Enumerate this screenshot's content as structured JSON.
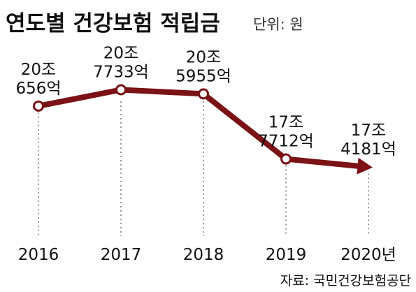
{
  "title": "연도별 건강보험 적립금",
  "unit_note": "단위: 원",
  "source": "자료: 국민건강보험공단",
  "colors": {
    "line": "#7a1216",
    "background": "#ffffff",
    "text": "#111111",
    "gridline": "#555555",
    "unit_text": "#333333"
  },
  "chart_data": {
    "type": "line",
    "categories": [
      "2016",
      "2017",
      "2018",
      "2019",
      "2020년"
    ],
    "series": [
      {
        "values": [
          200656,
          207733,
          205955,
          177712,
          174181
        ],
        "value_unit": "억 원"
      }
    ],
    "data_labels": [
      [
        "20조",
        "656억"
      ],
      [
        "20조",
        "7733억"
      ],
      [
        "20조",
        "5955억"
      ],
      [
        "17조",
        "7712억"
      ],
      [
        "17조",
        "4181억"
      ]
    ],
    "last_point_arrow": true,
    "grid": "vertical dotted",
    "legend": "none"
  }
}
